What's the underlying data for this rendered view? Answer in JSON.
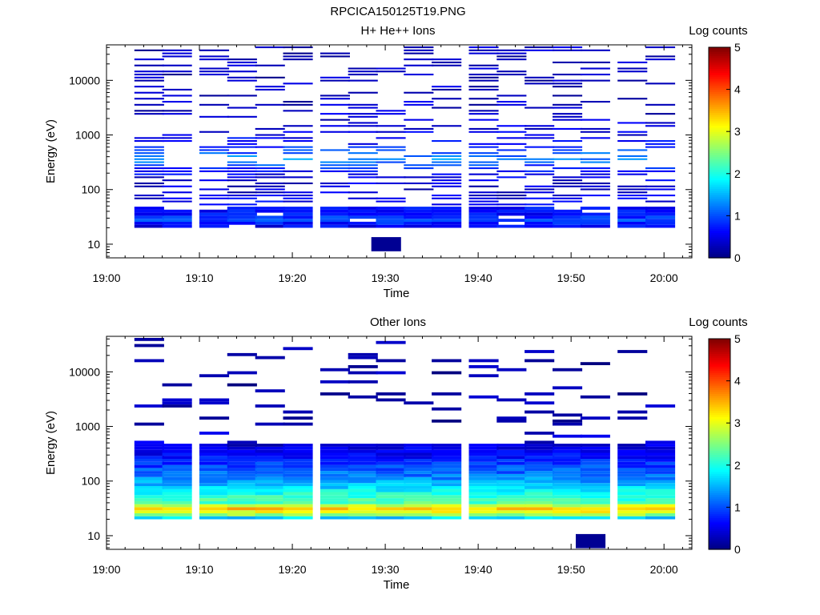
{
  "figure_title": "RPCICA150125T19.PNG",
  "colormap": [
    "#00007f",
    "#0000ff",
    "#007fff",
    "#00ffff",
    "#7fff7f",
    "#ffff00",
    "#ff7f00",
    "#ff0000",
    "#7f0000"
  ],
  "chart_data": [
    {
      "type": "heatmap",
      "title": "H+ He++ Ions",
      "xlabel": "Time",
      "ylabel": "Energy (eV)",
      "colorbar_label": "Log counts",
      "x_ticks": [
        "19:00",
        "19:10",
        "19:20",
        "19:30",
        "19:40",
        "19:50",
        "20:00"
      ],
      "y_ticks": [
        "10",
        "100",
        "1000",
        "10000"
      ],
      "colorbar_ticks": [
        "0",
        "1",
        "2",
        "3",
        "4",
        "5"
      ],
      "xlim_minutes": [
        0,
        63
      ],
      "ylim_log10": [
        0.75,
        4.65
      ],
      "clim": [
        0,
        5
      ],
      "time_bins": [
        "19:03",
        "19:06",
        "19:10",
        "19:13",
        "19:16",
        "19:19",
        "19:23",
        "19:26",
        "19:29",
        "19:32",
        "19:35",
        "19:39",
        "19:42",
        "19:45",
        "19:48",
        "19:51",
        "19:55",
        "19:58"
      ],
      "profile": {
        "energy_log10": [
          1.35,
          1.45,
          1.55,
          2.0,
          2.3,
          2.55,
          2.75,
          3.0,
          3.5,
          4.0,
          4.6
        ],
        "log_counts": [
          0.6,
          1.0,
          0.7,
          0.35,
          0.55,
          1.3,
          0.8,
          0.45,
          0.35,
          0.3,
          0.3
        ]
      },
      "extra_cells": [
        {
          "time": "19:30",
          "energy_log10": 1.0,
          "log_counts": 0.1
        }
      ]
    },
    {
      "type": "heatmap",
      "title": "Other Ions",
      "xlabel": "Time",
      "ylabel": "Energy (eV)",
      "colorbar_label": "Log counts",
      "x_ticks": [
        "19:00",
        "19:10",
        "19:20",
        "19:30",
        "19:40",
        "19:50",
        "20:00"
      ],
      "y_ticks": [
        "10",
        "100",
        "1000",
        "10000"
      ],
      "colorbar_ticks": [
        "0",
        "1",
        "2",
        "3",
        "4",
        "5"
      ],
      "xlim_minutes": [
        0,
        63
      ],
      "ylim_log10": [
        0.75,
        4.65
      ],
      "clim": [
        0,
        5
      ],
      "time_bins": [
        "19:03",
        "19:06",
        "19:10",
        "19:13",
        "19:16",
        "19:19",
        "19:23",
        "19:26",
        "19:29",
        "19:32",
        "19:35",
        "19:39",
        "19:42",
        "19:45",
        "19:48",
        "19:51",
        "19:55",
        "19:58"
      ],
      "profile": {
        "energy_log10": [
          1.2,
          1.3,
          1.4,
          1.5,
          1.6,
          1.8,
          2.0,
          2.2,
          2.4,
          2.6,
          3.0,
          3.3,
          4.2
        ],
        "log_counts": [
          0.35,
          1.2,
          2.9,
          3.4,
          2.3,
          1.9,
          1.4,
          1.05,
          0.75,
          0.45,
          0.25,
          0.2,
          0.15
        ]
      },
      "extra_cells": [
        {
          "time": "19:52",
          "energy_log10": 0.9,
          "log_counts": 0.1
        }
      ]
    }
  ]
}
